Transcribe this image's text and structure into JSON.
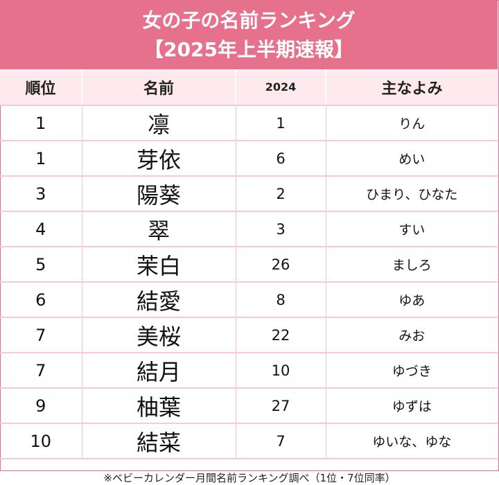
{
  "header": {
    "title": "女の子の名前ランキング",
    "subtitle": "【2025年上半期速報】"
  },
  "columns": {
    "rank": "順位",
    "name": "名前",
    "prev": "2024",
    "yomi": "主なよみ"
  },
  "rows": [
    {
      "rank": "1",
      "name": "凛",
      "prev": "1",
      "yomi": "りん"
    },
    {
      "rank": "1",
      "name": "芽依",
      "prev": "6",
      "yomi": "めい"
    },
    {
      "rank": "3",
      "name": "陽葵",
      "prev": "2",
      "yomi": "ひまり、ひなた"
    },
    {
      "rank": "4",
      "name": "翠",
      "prev": "3",
      "yomi": "すい"
    },
    {
      "rank": "5",
      "name": "茉白",
      "prev": "26",
      "yomi": "ましろ"
    },
    {
      "rank": "6",
      "name": "結愛",
      "prev": "8",
      "yomi": "ゆあ"
    },
    {
      "rank": "7",
      "name": "美桜",
      "prev": "22",
      "yomi": "みお"
    },
    {
      "rank": "7",
      "name": "結月",
      "prev": "10",
      "yomi": "ゆづき"
    },
    {
      "rank": "9",
      "name": "柚葉",
      "prev": "27",
      "yomi": "ゆずは"
    },
    {
      "rank": "10",
      "name": "結菜",
      "prev": "7",
      "yomi": "ゆいな、ゆな"
    }
  ],
  "footnote": "※ベビーカレンダー月間名前ランキング調べ（1位・7位同率）",
  "colors": {
    "header_bg": "#e6718c",
    "column_header_bg": "#fde9ee",
    "row_line": "#f6c9d4"
  }
}
